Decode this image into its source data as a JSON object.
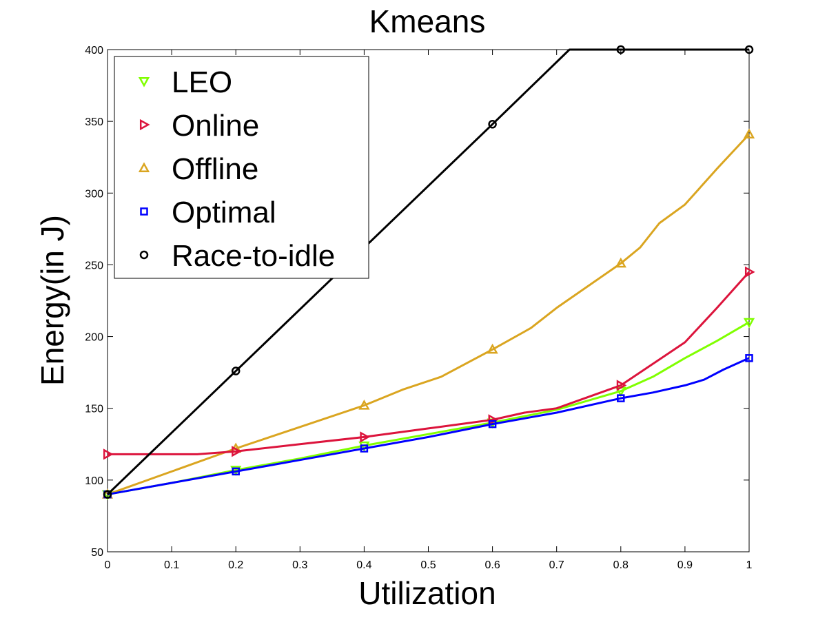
{
  "chart_data": {
    "type": "line",
    "title": "Kmeans",
    "xlabel": "Utilization",
    "ylabel": "Energy(in J)",
    "xlim": [
      0,
      1
    ],
    "ylim": [
      50,
      400
    ],
    "xticks": [
      0,
      0.1,
      0.2,
      0.3,
      0.4,
      0.5,
      0.6,
      0.7,
      0.8,
      0.9,
      1
    ],
    "xtick_labels": [
      "0",
      "0.1",
      "0.2",
      "0.3",
      "0.4",
      "0.5",
      "0.6",
      "0.7",
      "0.8",
      "0.9",
      "1"
    ],
    "yticks": [
      50,
      100,
      150,
      200,
      250,
      300,
      350,
      400
    ],
    "ytick_labels": [
      "50",
      "100",
      "150",
      "200",
      "250",
      "300",
      "350",
      "400"
    ],
    "legend_position": "top-left",
    "grid": false,
    "series": [
      {
        "name": "LEO",
        "color": "#80ff00",
        "marker": "triangle-down",
        "line": [
          [
            0,
            90
          ],
          [
            0.1,
            98
          ],
          [
            0.2,
            107
          ],
          [
            0.3,
            115
          ],
          [
            0.4,
            124
          ],
          [
            0.5,
            132
          ],
          [
            0.6,
            140
          ],
          [
            0.7,
            149
          ],
          [
            0.8,
            162
          ],
          [
            0.85,
            172
          ],
          [
            0.9,
            185
          ],
          [
            0.95,
            197
          ],
          [
            1,
            210
          ]
        ],
        "markers": [
          [
            0,
            90
          ],
          [
            0.2,
            107
          ],
          [
            0.4,
            124
          ],
          [
            0.6,
            140
          ],
          [
            0.8,
            162
          ],
          [
            1,
            210
          ]
        ]
      },
      {
        "name": "Online",
        "color": "#dc143c",
        "marker": "triangle-right",
        "line": [
          [
            0,
            118
          ],
          [
            0.14,
            118
          ],
          [
            0.2,
            120
          ],
          [
            0.3,
            125
          ],
          [
            0.4,
            130
          ],
          [
            0.5,
            136
          ],
          [
            0.6,
            142
          ],
          [
            0.65,
            147
          ],
          [
            0.7,
            150
          ],
          [
            0.8,
            166
          ],
          [
            0.85,
            181
          ],
          [
            0.9,
            196
          ],
          [
            0.95,
            220
          ],
          [
            1,
            245
          ]
        ],
        "markers": [
          [
            0,
            118
          ],
          [
            0.2,
            120
          ],
          [
            0.4,
            130
          ],
          [
            0.6,
            142
          ],
          [
            0.8,
            166
          ],
          [
            1,
            245
          ]
        ]
      },
      {
        "name": "Offline",
        "color": "#daa520",
        "marker": "triangle-up",
        "line": [
          [
            0,
            90
          ],
          [
            0.1,
            106
          ],
          [
            0.2,
            122
          ],
          [
            0.3,
            137
          ],
          [
            0.4,
            152
          ],
          [
            0.46,
            163
          ],
          [
            0.52,
            172
          ],
          [
            0.6,
            191
          ],
          [
            0.66,
            206
          ],
          [
            0.7,
            220
          ],
          [
            0.8,
            251
          ],
          [
            0.83,
            262
          ],
          [
            0.86,
            279
          ],
          [
            0.9,
            292
          ],
          [
            0.95,
            317
          ],
          [
            1,
            341
          ]
        ],
        "markers": [
          [
            0,
            90
          ],
          [
            0.2,
            122
          ],
          [
            0.4,
            152
          ],
          [
            0.6,
            191
          ],
          [
            0.8,
            251
          ],
          [
            1,
            341
          ]
        ]
      },
      {
        "name": "Optimal",
        "color": "#0000ff",
        "marker": "square",
        "line": [
          [
            0,
            90
          ],
          [
            0.1,
            98
          ],
          [
            0.2,
            106
          ],
          [
            0.3,
            114
          ],
          [
            0.4,
            122
          ],
          [
            0.5,
            130
          ],
          [
            0.6,
            139
          ],
          [
            0.7,
            147
          ],
          [
            0.8,
            157
          ],
          [
            0.85,
            161
          ],
          [
            0.9,
            166
          ],
          [
            0.93,
            170
          ],
          [
            0.96,
            177
          ],
          [
            1,
            185
          ]
        ],
        "markers": [
          [
            0,
            90
          ],
          [
            0.2,
            106
          ],
          [
            0.4,
            122
          ],
          [
            0.6,
            139
          ],
          [
            0.8,
            157
          ],
          [
            1,
            185
          ]
        ]
      },
      {
        "name": "Race-to-idle",
        "color": "#000000",
        "marker": "circle",
        "line": [
          [
            0,
            90
          ],
          [
            0.2,
            176
          ],
          [
            0.4,
            262
          ],
          [
            0.6,
            348
          ],
          [
            0.72,
            400
          ],
          [
            0.8,
            400
          ],
          [
            1,
            400
          ]
        ],
        "markers": [
          [
            0,
            90
          ],
          [
            0.2,
            176
          ],
          [
            0.6,
            348
          ],
          [
            0.8,
            400
          ],
          [
            1,
            400
          ]
        ]
      }
    ]
  }
}
